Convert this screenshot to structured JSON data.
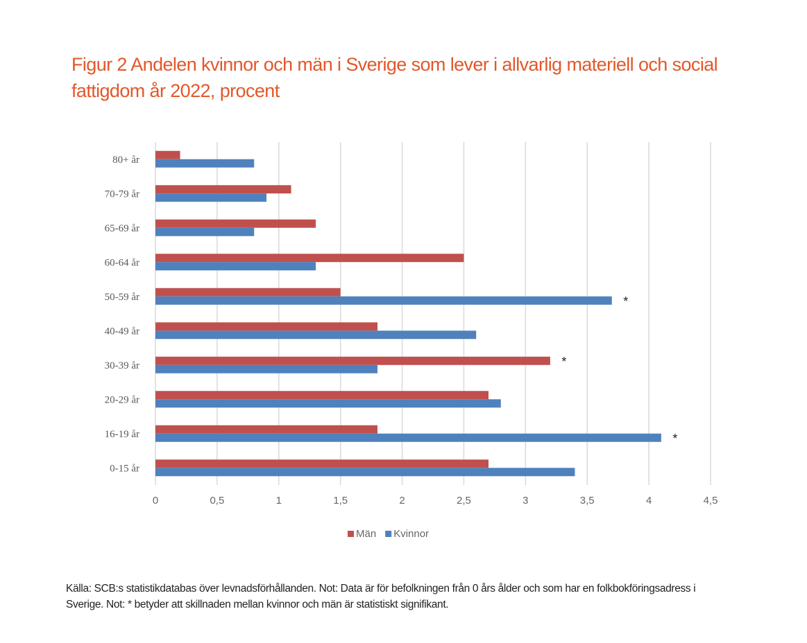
{
  "title": "Figur 2 Andelen kvinnor och män i Sverige som lever i allvarlig materiell och social fattigdom år 2022, procent",
  "footnote": "Källa: SCB:s statistikdatabas över levnadsförhållanden. Not: Data är för befolkningen från 0 års ålder och som har en folkbokföringsadress i Sverige.  Not: * betyder att skillnaden mellan kvinnor och män är statistiskt signifikant.",
  "colors": {
    "title": "#e3572a",
    "man": "#c0504d",
    "kvinnor": "#4f81bd",
    "grid": "#d9d9d9"
  },
  "chart_data": {
    "type": "bar",
    "orientation": "horizontal",
    "title": "Figur 2 Andelen kvinnor och män i Sverige som lever i allvarlig materiell och social fattigdom år 2022, procent",
    "xlabel": "",
    "ylabel": "",
    "xlim": [
      0,
      4.5
    ],
    "xticks": [
      "0",
      "0,5",
      "1",
      "1,5",
      "2",
      "2,5",
      "3",
      "3,5",
      "4",
      "4,5"
    ],
    "xtick_values": [
      0,
      0.5,
      1,
      1.5,
      2,
      2.5,
      3,
      3.5,
      4,
      4.5
    ],
    "grid": true,
    "legend": "bottom",
    "categories": [
      "80+ år",
      "70-79 år",
      "65-69 år",
      "60-64 år",
      "50-59 år",
      "40-49 år",
      "30-39 år",
      "20-29 år",
      "16-19 år",
      "0-15 år"
    ],
    "series": [
      {
        "name": "Män",
        "color": "#c0504d",
        "values": [
          0.2,
          1.1,
          1.3,
          2.5,
          1.5,
          1.8,
          3.2,
          2.7,
          1.8,
          2.7
        ]
      },
      {
        "name": "Kvinnor",
        "color": "#4f81bd",
        "values": [
          0.8,
          0.9,
          0.8,
          1.3,
          3.7,
          2.6,
          1.8,
          2.8,
          4.1,
          3.4
        ]
      }
    ],
    "annotations": [
      {
        "text": "*",
        "category": "50-59 år",
        "series": "Kvinnor"
      },
      {
        "text": "*",
        "category": "30-39 år",
        "series": "Män"
      },
      {
        "text": "*",
        "category": "16-19 år",
        "series": "Kvinnor"
      }
    ]
  }
}
